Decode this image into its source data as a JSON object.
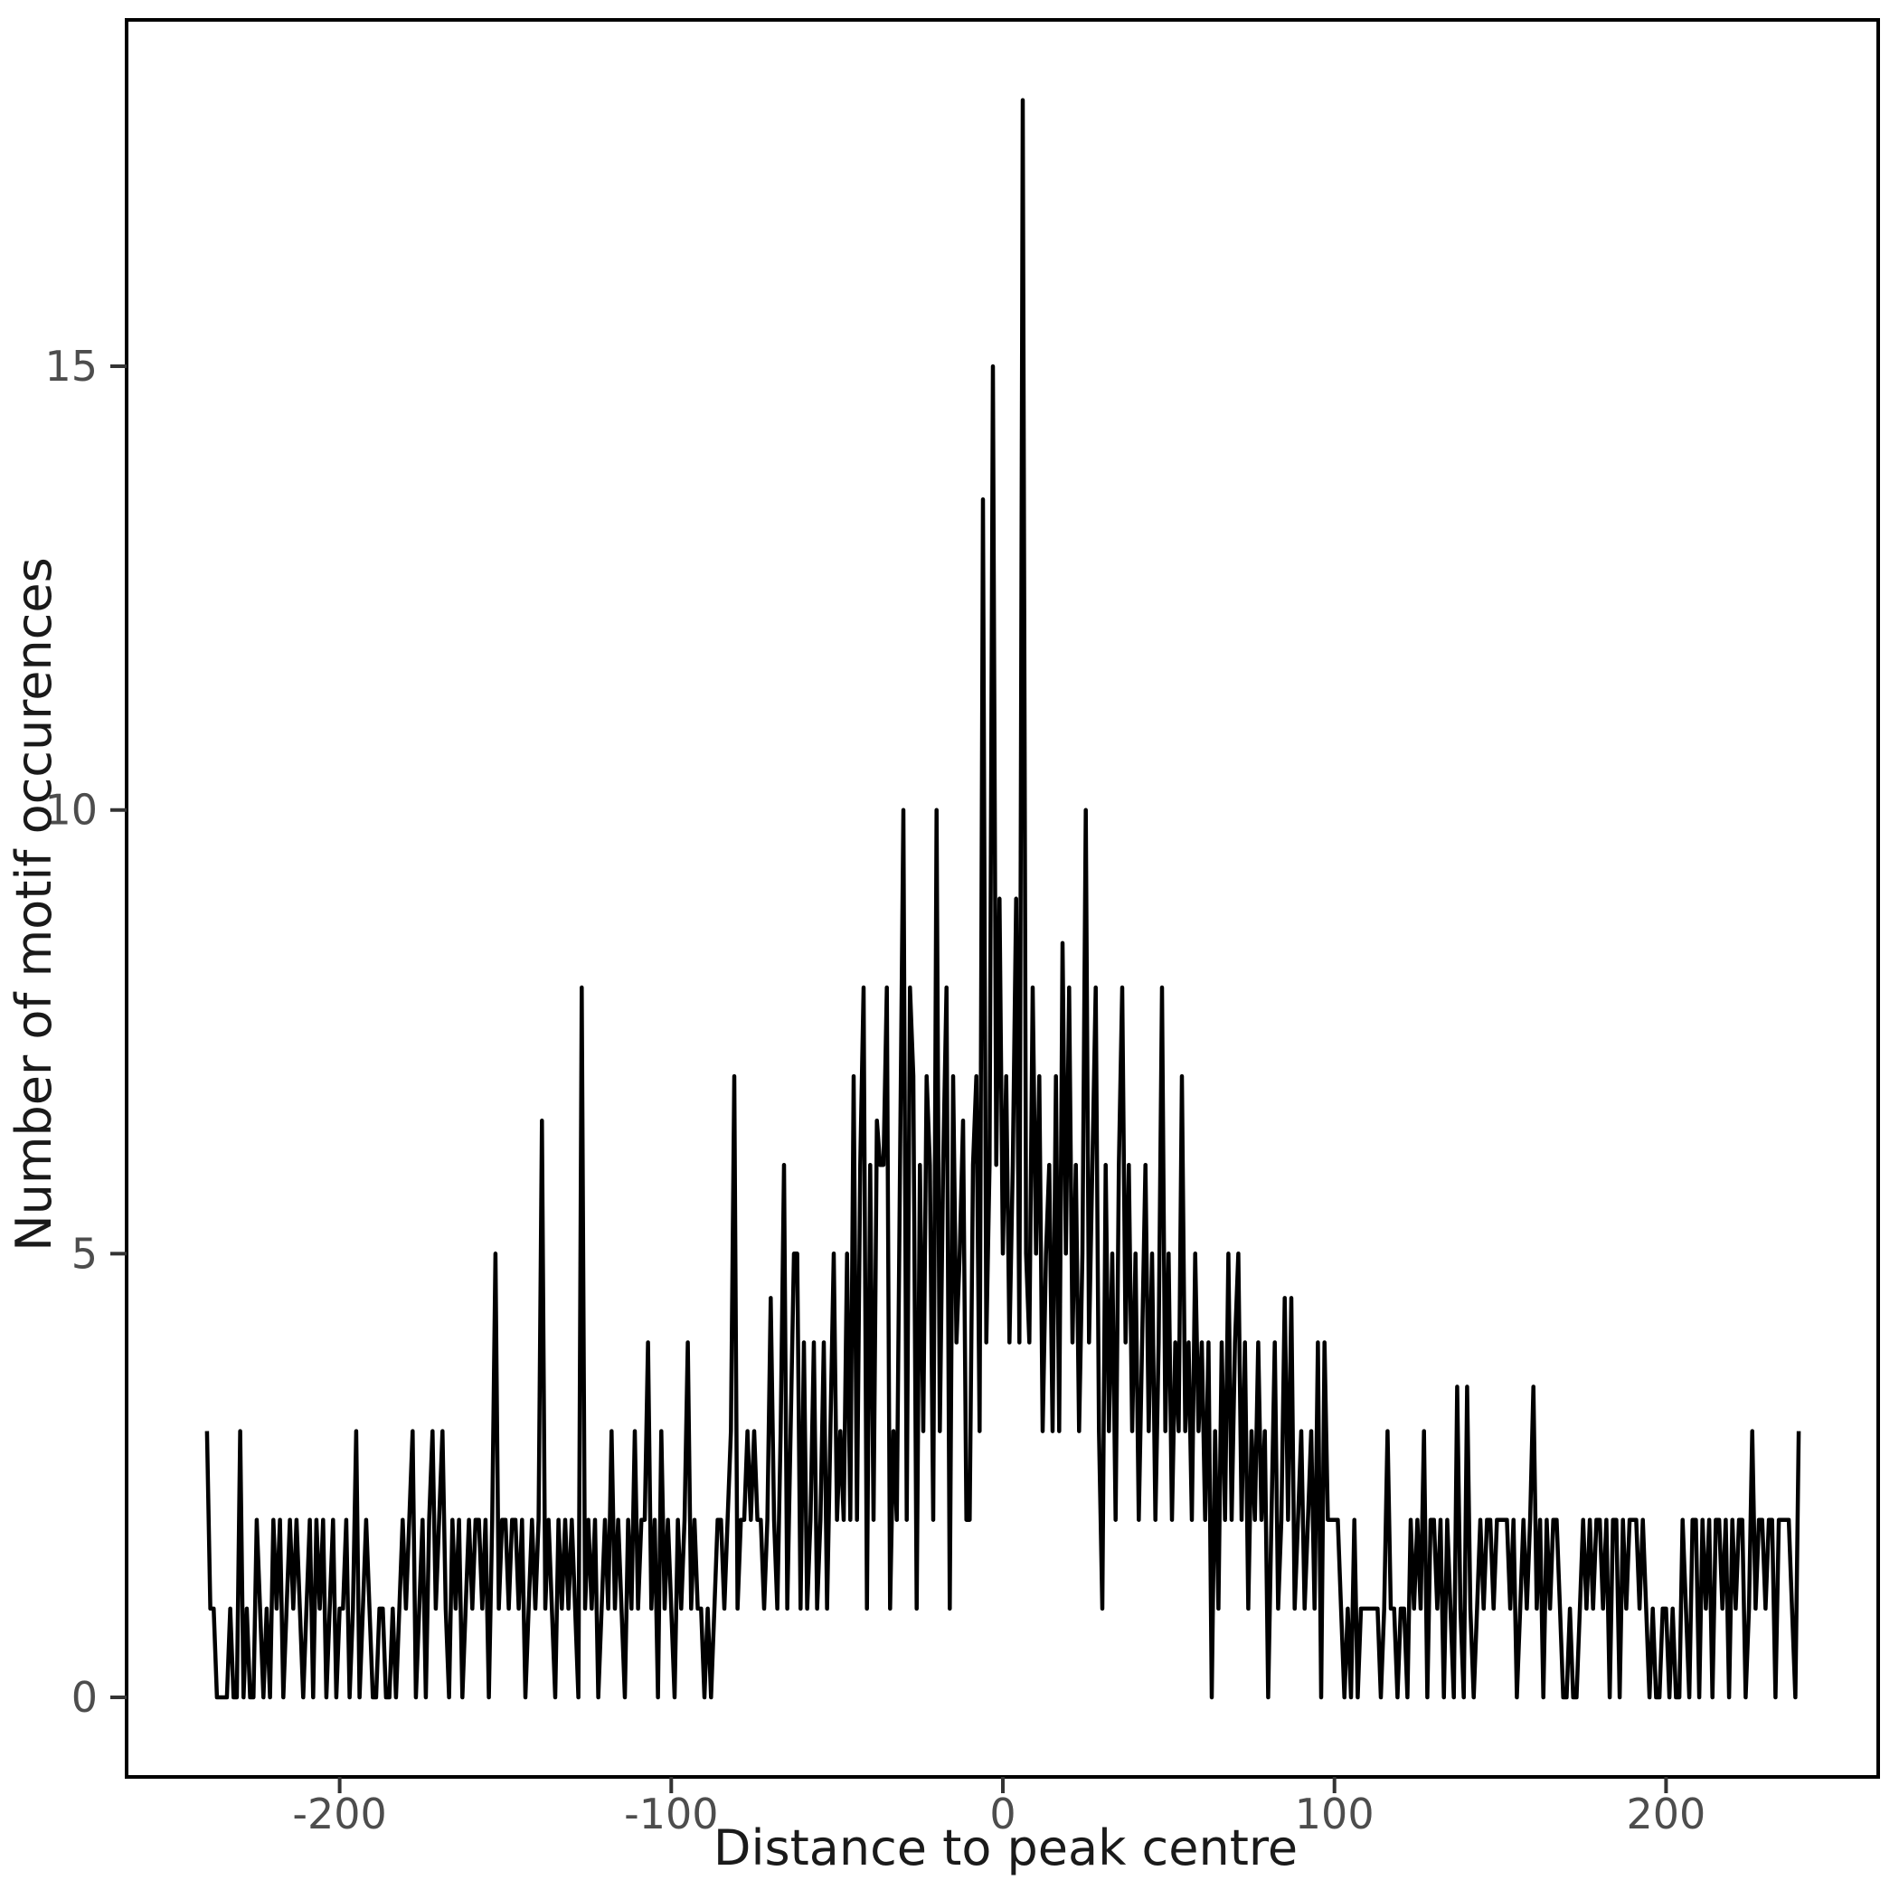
{
  "chart_data": {
    "type": "line",
    "title": "",
    "xlabel": "Distance to peak centre",
    "ylabel": "Number of motif occurences",
    "line_color": "#000000",
    "tick_label_color": "#4d4d4d",
    "axis_color": "#000000",
    "legend": "none",
    "grid": false,
    "x_ticks": [
      -200,
      -100,
      0,
      100,
      200
    ],
    "y_ticks": [
      0,
      5,
      10,
      15
    ],
    "x_domain": [
      -264,
      264
    ],
    "y_domain": [
      -0.9,
      18.9
    ],
    "x_start": -240,
    "x_step": 1,
    "values": [
      3,
      1,
      1,
      0,
      0,
      0,
      0,
      1,
      0,
      0,
      3,
      0,
      1,
      0,
      0,
      2,
      1,
      0,
      1,
      0,
      2,
      1,
      2,
      0,
      1,
      2,
      1,
      2,
      1,
      0,
      1,
      2,
      0,
      2,
      1,
      2,
      0,
      1,
      2,
      0,
      1,
      1,
      2,
      0,
      1,
      3,
      0,
      1,
      2,
      1,
      0,
      0,
      1,
      1,
      0,
      0,
      1,
      0,
      1,
      2,
      1,
      2,
      3,
      0,
      1,
      2,
      0,
      2,
      3,
      1,
      2,
      3,
      1,
      0,
      2,
      1,
      2,
      0,
      1,
      2,
      1,
      2,
      2,
      1,
      2,
      0,
      2,
      5,
      1,
      2,
      2,
      1,
      2,
      2,
      1,
      2,
      0,
      1,
      2,
      1,
      2,
      6.5,
      1,
      2,
      1,
      0,
      2,
      1,
      2,
      1,
      2,
      1,
      0,
      8,
      1,
      2,
      1,
      2,
      0,
      1,
      2,
      1,
      3,
      1,
      2,
      1,
      0,
      2,
      1,
      3,
      1,
      2,
      2,
      4,
      1,
      2,
      0,
      3,
      1,
      2,
      1,
      0,
      2,
      1,
      2,
      4,
      1,
      2,
      1,
      1,
      0,
      1,
      0,
      1,
      2,
      2,
      1,
      2,
      3,
      7,
      1,
      2,
      2,
      3,
      2,
      3,
      2,
      2,
      1,
      2,
      4.5,
      2,
      1,
      3,
      6,
      1,
      3,
      5,
      5,
      1,
      4,
      1,
      2,
      4,
      1,
      2,
      4,
      1,
      3,
      5,
      2,
      3,
      2,
      5,
      2,
      7,
      2,
      6,
      8,
      1,
      6,
      2,
      6.5,
      6,
      6,
      8,
      1,
      3,
      2,
      6,
      10,
      2,
      8,
      7,
      1,
      6,
      3,
      7,
      6,
      2,
      10,
      3,
      6,
      8,
      1,
      7,
      4,
      5,
      6.5,
      2,
      2,
      6,
      7,
      3,
      13.5,
      4,
      6,
      15,
      6,
      9,
      5,
      7,
      4,
      6,
      9,
      4,
      18,
      5,
      4,
      8,
      5,
      7,
      3,
      5,
      6,
      3,
      7,
      3,
      8.5,
      5,
      8,
      4,
      6,
      3,
      5,
      10,
      4,
      6,
      8,
      3,
      1,
      6,
      3,
      5,
      2,
      6,
      8,
      4,
      6,
      3,
      5,
      2,
      4,
      6,
      3,
      5,
      2,
      4,
      8,
      3,
      5,
      2,
      4,
      3,
      7,
      3,
      4,
      2,
      5,
      3,
      4,
      2,
      4,
      0,
      3,
      1,
      4,
      2,
      5,
      2,
      4,
      5,
      2,
      4,
      1,
      3,
      2,
      4,
      2,
      3,
      0,
      2,
      4,
      1,
      2,
      4.5,
      2,
      4.5,
      1,
      2,
      3,
      1,
      2,
      3,
      1,
      4,
      0,
      4,
      2,
      2,
      2,
      2,
      1,
      0,
      1,
      0,
      2,
      0,
      1,
      1,
      1,
      1,
      1,
      1,
      0,
      1,
      3,
      1,
      1,
      0,
      1,
      1,
      0,
      2,
      1,
      2,
      1,
      3,
      0,
      2,
      2,
      1,
      2,
      0,
      2,
      1,
      0,
      3.5,
      1,
      0,
      3.5,
      1,
      0,
      1,
      2,
      1,
      2,
      2,
      1,
      2,
      2,
      2,
      2,
      1,
      2,
      0,
      1,
      2,
      1,
      2,
      3.5,
      1,
      2,
      0,
      2,
      1,
      2,
      2,
      1,
      0,
      0,
      1,
      0,
      0,
      1,
      2,
      1,
      2,
      1,
      2,
      2,
      1,
      2,
      0,
      2,
      2,
      0,
      2,
      1,
      2,
      2,
      2,
      1,
      2,
      1,
      0,
      1,
      0,
      0,
      1,
      1,
      0,
      1,
      0,
      0,
      2,
      1,
      0,
      2,
      2,
      0,
      2,
      1,
      2,
      0,
      2,
      2,
      1,
      2,
      0,
      2,
      1,
      2,
      2,
      0,
      1,
      3,
      1,
      2,
      2,
      1,
      2,
      2,
      0,
      2,
      2,
      2,
      2,
      1,
      0,
      3
    ]
  }
}
